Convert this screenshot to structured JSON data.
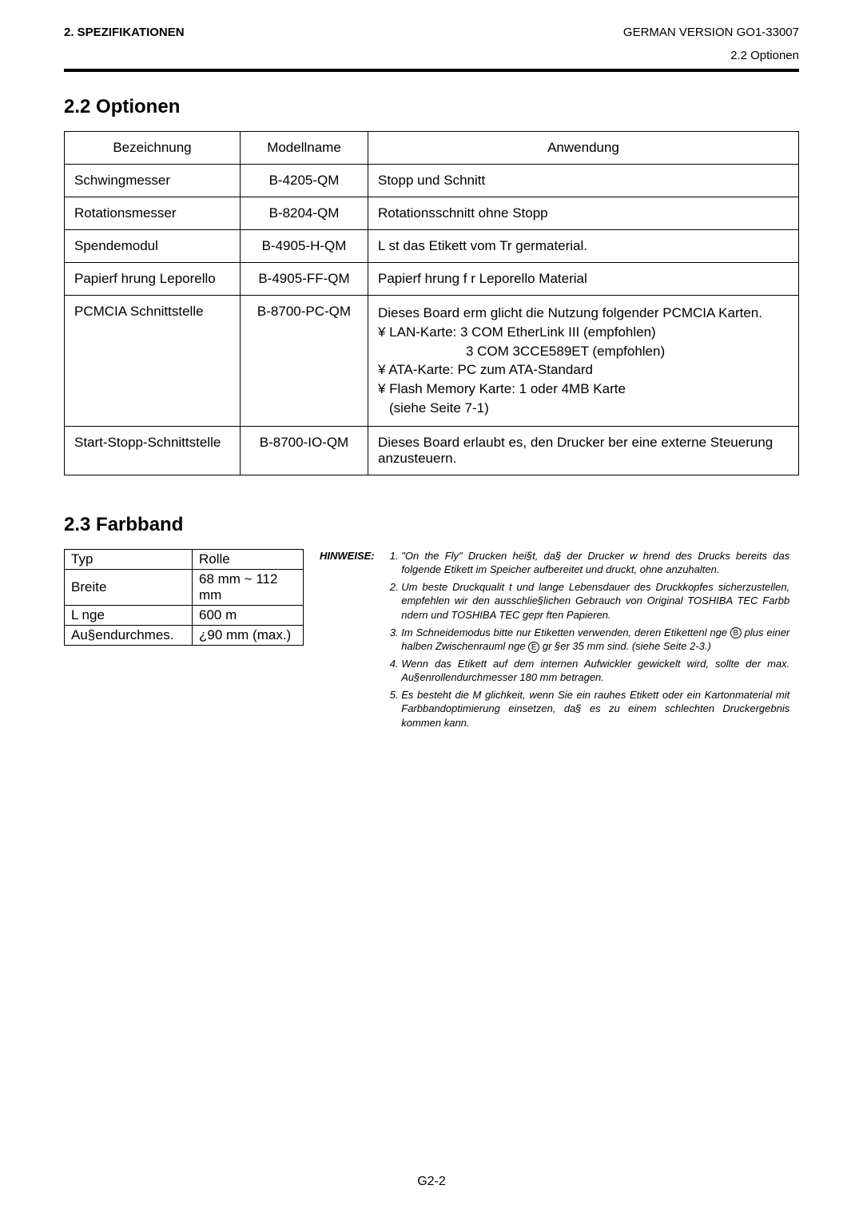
{
  "header": {
    "left": "2.  SPEZIFIKATIONEN",
    "right": "GERMAN VERSION GO1-33007",
    "sub_right": "2.2 Optionen"
  },
  "section22": {
    "title": "2.2  Optionen",
    "headers": {
      "bez": "Bezeichnung",
      "model": "Modellname",
      "anw": "Anwendung"
    },
    "rows": [
      {
        "bez": "Schwingmesser",
        "model": "B-4205-QM",
        "anw": "Stopp und Schnitt"
      },
      {
        "bez": "Rotationsmesser",
        "model": "B-8204-QM",
        "anw": "Rotationsschnitt ohne Stopp"
      },
      {
        "bez": "Spendemodul",
        "model": "B-4905-H-QM",
        "anw": "L st das Etikett vom Tr germaterial."
      },
      {
        "bez": "Papierf hrung Leporello",
        "model": "B-4905-FF-QM",
        "anw": "Papierf hrung f r Leporello Material"
      },
      {
        "bez": "PCMCIA Schnittstelle",
        "model": "B-8700-PC-QM",
        "anw_pcmcia": {
          "line1": "Dieses Board erm glicht die Nutzung folgender PCMCIA Karten.",
          "lan_a": "¥ LAN-Karte: 3 COM EtherLink III (empfohlen)",
          "lan_b": "3 COM 3CCE589ET (empfohlen)",
          "ata": "¥ ATA-Karte: PC zum ATA-Standard",
          "flash": "¥ Flash Memory Karte: 1 oder 4MB Karte",
          "see": "(siehe Seite 7-1)"
        }
      },
      {
        "bez": "Start-Stopp-Schnittstelle",
        "model": "B-8700-IO-QM",
        "anw": "Dieses Board erlaubt es, den Drucker  ber eine externe Steuerung anzusteuern."
      }
    ]
  },
  "section23": {
    "title": "2.3  Farbband",
    "rows": [
      {
        "k": "Typ",
        "v": "Rolle"
      },
      {
        "k": "Breite",
        "v": "68 mm ~ 112 mm"
      },
      {
        "k": "L nge",
        "v": "600 m"
      },
      {
        "k": "Au§endurchmes.",
        "v": "¿90 mm (max.)"
      }
    ]
  },
  "hinweise": {
    "label": "HINWEISE:",
    "items": [
      "\"On the Fly\" Drucken hei§t, da§ der Drucker w hrend des Drucks bereits das folgende Etikett im Speicher aufbereitet und druckt, ohne anzuhalten.",
      "Um beste Druckqualit t und lange Lebensdauer des Druckkopfes sicherzustellen, empfehlen wir den ausschlie§lichen Gebrauch von Original TOSHIBA TEC Farbb ndern und TOSHIBA TEC gepr ften Papieren.",
      "Im Schneidemodus bitte nur Etiketten verwenden, deren Etikettenl nge B plus einer halben Zwischenrauml nge E gr §er 35 mm sind. (siehe Seite 2-3.)",
      "Wenn das Etikett auf dem internen Aufwickler gewickelt wird, sollte der max. Au§enrollendurchmesser 180 mm betragen.",
      "Es besteht die M glichkeit, wenn Sie ein rauhes Etikett oder ein Kartonmaterial mit Farbbandoptimierung einsetzen, da§ es zu einem schlechten Druckergebnis kommen kann."
    ],
    "circ_b": "B",
    "circ_e": "E"
  },
  "footer": "G2-2"
}
